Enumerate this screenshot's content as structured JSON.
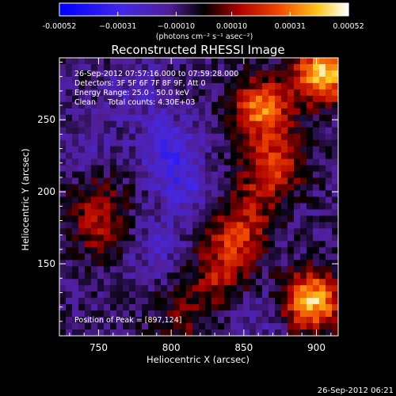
{
  "chart_data": {
    "type": "heatmap",
    "title": "Reconstructed RHESSI Image",
    "xlabel": "Heliocentric X (arcsec)",
    "ylabel": "Heliocentric Y (arcsec)",
    "xlim": [
      723,
      915
    ],
    "ylim": [
      100,
      293
    ],
    "x_ticks": [
      750,
      800,
      850,
      900
    ],
    "y_ticks": [
      150,
      200,
      250
    ],
    "colorbar": {
      "min": -0.00052,
      "max": 0.00052,
      "tick_values": [
        -0.00052,
        -0.00031,
        -0.0001,
        0.0001,
        0.00031,
        0.00052
      ],
      "tick_labels": [
        "-0.00052",
        "−0.00031",
        "−0.00010",
        "0.00010",
        "0.00031",
        "0.00052"
      ],
      "unit_label": "(photons cm⁻² s⁻¹ asec⁻²)"
    },
    "annotations": [
      "26-Sep-2012 07:57:16.000 to 07:59:28.000",
      "Detectors: 3F 5F 6F 7F 8F 9F, Att 0",
      "Energy Range: 25.0 - 50.0 keV",
      "Clean     Total counts: 4.30E+03"
    ],
    "peak_label": "Position of Peak = [897,124]",
    "sources": [
      {
        "x": 905,
        "y": 282,
        "value": 0.00052
      },
      {
        "x": 897,
        "y": 124,
        "value": 0.00052
      },
      {
        "x": 862,
        "y": 258,
        "value": 0.00042
      },
      {
        "x": 872,
        "y": 220,
        "value": 0.0003
      },
      {
        "x": 845,
        "y": 168,
        "value": 0.00028
      },
      {
        "x": 832,
        "y": 140,
        "value": 0.00022
      },
      {
        "x": 752,
        "y": 172,
        "value": 0.00018
      },
      {
        "x": 805,
        "y": 112,
        "value": 0.00015
      },
      {
        "x": 748,
        "y": 198,
        "value": 0.00014
      },
      {
        "x": 858,
        "y": 195,
        "value": 0.00016
      },
      {
        "x": 797,
        "y": 232,
        "value": -0.0002
      },
      {
        "x": 808,
        "y": 205,
        "value": -0.00018
      },
      {
        "x": 790,
        "y": 160,
        "value": -0.00012
      },
      {
        "x": 775,
        "y": 270,
        "value": -0.0001
      },
      {
        "x": 740,
        "y": 225,
        "value": -0.0001
      },
      {
        "x": 860,
        "y": 112,
        "value": -0.0001
      }
    ]
  },
  "footer": {
    "timestamp": "26-Sep-2012 06:21"
  }
}
